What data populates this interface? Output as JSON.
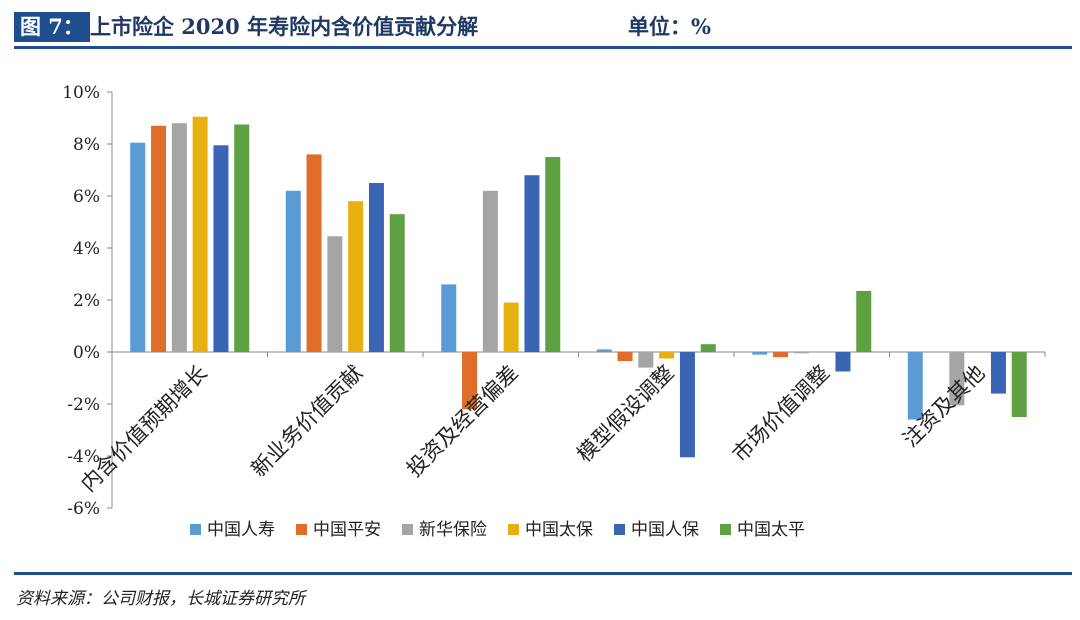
{
  "header": {
    "figure_label": "图 7：",
    "title": "上市险企 2020 年寿险内含价值贡献分解",
    "unit": "单位：%"
  },
  "footer": {
    "source": "资料来源：公司财报，长城证券研究所"
  },
  "colors": {
    "中国人寿": "#5b9bd5",
    "中国平安": "#e06c2a",
    "新华保险": "#a5a5a5",
    "中国太保": "#e8b00f",
    "中国人保": "#3a65b4",
    "中国太平": "#5fa042"
  },
  "chart_data": {
    "type": "bar",
    "categories": [
      "内含价值预期增长",
      "新业务价值贡献",
      "投资及经营偏差",
      "模型假设调整",
      "市场价值调整",
      "注资及其他"
    ],
    "series": [
      {
        "name": "中国人寿",
        "values": [
          8.05,
          6.2,
          2.6,
          0.1,
          -0.1,
          -2.6
        ]
      },
      {
        "name": "中国平安",
        "values": [
          8.7,
          7.6,
          -2.2,
          -0.35,
          -0.2,
          0.0
        ]
      },
      {
        "name": "新华保险",
        "values": [
          8.8,
          4.45,
          6.2,
          -0.6,
          -0.05,
          -2.05
        ]
      },
      {
        "name": "中国太保",
        "values": [
          9.05,
          5.8,
          1.9,
          -0.25,
          0.0,
          0.0
        ]
      },
      {
        "name": "中国人保",
        "values": [
          7.95,
          6.5,
          6.8,
          -4.05,
          -0.75,
          -1.6
        ]
      },
      {
        "name": "中国太平",
        "values": [
          8.75,
          5.3,
          7.5,
          0.3,
          2.35,
          -2.5
        ]
      }
    ],
    "ylim": [
      -6,
      10
    ],
    "yticks": [
      "10%",
      "8%",
      "6%",
      "4%",
      "2%",
      "0%",
      "-2%",
      "-4%",
      "-6%"
    ],
    "ytick_values": [
      10,
      8,
      6,
      4,
      2,
      0,
      -2,
      -4,
      -6
    ],
    "legend_position": "bottom",
    "grid": false
  }
}
